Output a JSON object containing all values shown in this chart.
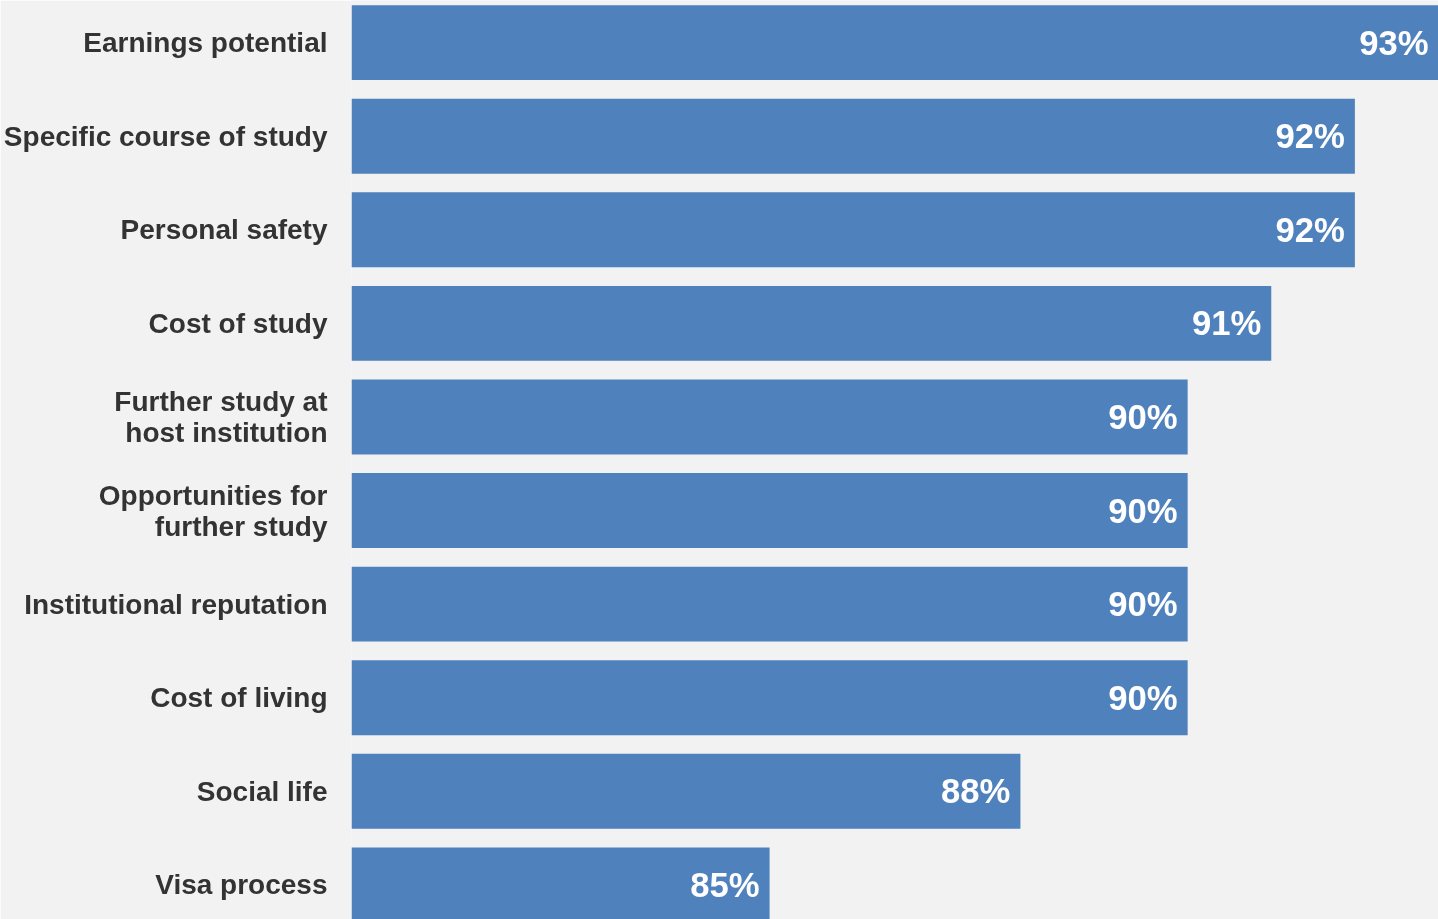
{
  "chart_data": {
    "type": "bar",
    "orientation": "horizontal",
    "categories": [
      "Earnings potential",
      "Specific course of study",
      "Personal safety",
      "Cost of study",
      "Further study at\nhost institution",
      "Opportunities for\nfurther study",
      "Institutional reputation",
      "Cost of living",
      "Social life",
      "Visa process"
    ],
    "values": [
      93,
      92,
      92,
      91,
      90,
      90,
      90,
      90,
      88,
      85
    ],
    "color": "#4f81bd",
    "data_labels": true,
    "value_labels": [
      "93%",
      "92%",
      "92%",
      "91%",
      "90%",
      "90%",
      "90%",
      "90%",
      "88%",
      "85%"
    ],
    "xlim": [
      80,
      93
    ],
    "grid": false,
    "tick_labels": "y"
  }
}
